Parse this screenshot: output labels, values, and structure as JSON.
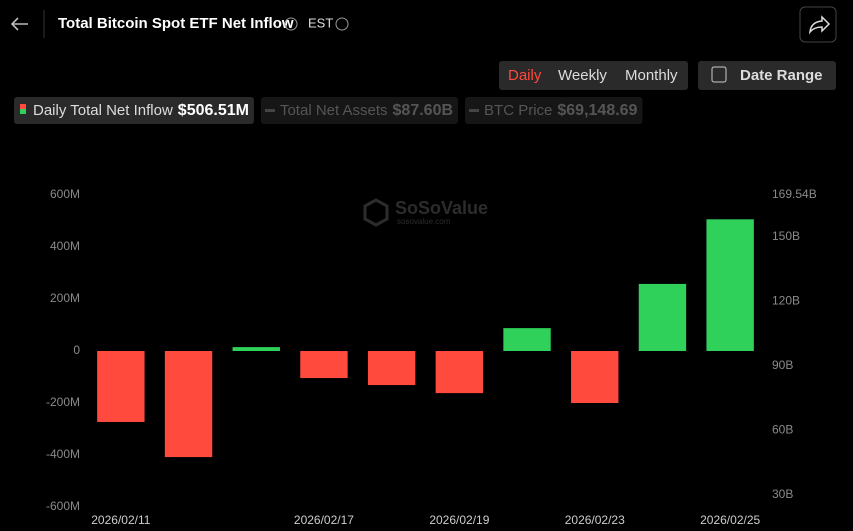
{
  "header": {
    "title": "Total Bitcoin Spot ETF Net Inflow",
    "timezone": "EST"
  },
  "tabs": [
    "Daily",
    "Weekly",
    "Monthly"
  ],
  "active_tab": 0,
  "date_range": "Date Range",
  "legend": [
    {
      "name": "Daily Total Net Inflow",
      "value": "$506.51M",
      "active": true
    },
    {
      "name": "Total Net Assets",
      "value": "$87.60B",
      "active": false
    },
    {
      "name": "BTC Price",
      "value": "$69,148.69",
      "active": false
    }
  ],
  "watermark": {
    "brand": "SoSoValue",
    "site": "sosovalue.com"
  },
  "chart_data": {
    "type": "bar",
    "categories": [
      "2026/02/11",
      null,
      null,
      "2026/02/17",
      null,
      "2026/02/19",
      null,
      "2026/02/23",
      null,
      "2026/02/25"
    ],
    "values": [
      -273,
      -408,
      15,
      -104,
      -131,
      -162,
      88,
      -200,
      258,
      506.51
    ],
    "positive_color": "#2fd15a",
    "negative_color": "#ff4a3d",
    "ylim": [
      -600,
      600
    ],
    "yticks": [
      {
        "value": -600,
        "label": "-600M"
      },
      {
        "value": -400,
        "label": "-400M"
      },
      {
        "value": -200,
        "label": "-200M"
      },
      0,
      {
        "value": 200,
        "label": "200M"
      },
      {
        "value": 400,
        "label": "400M"
      },
      {
        "value": 600,
        "label": "600M"
      }
    ],
    "y2lim": [
      24.4,
      169.54
    ],
    "y2ticks": [
      {
        "value": 30,
        "label": "30B"
      },
      {
        "value": 60,
        "label": "60B"
      },
      {
        "value": 90,
        "label": "90B"
      },
      {
        "value": 120,
        "label": "120B"
      },
      {
        "value": 150,
        "label": "150B"
      },
      {
        "value": 169.54,
        "label": "169.54B"
      }
    ],
    "grid": false
  }
}
